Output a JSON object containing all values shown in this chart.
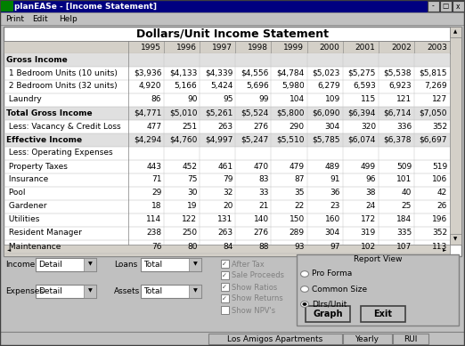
{
  "title": "Dollars/Unit Income Statement",
  "window_title": "planEASe - [Income Statement]",
  "menu_items": [
    "Print",
    "Edit",
    "Help"
  ],
  "years": [
    "1995",
    "1996",
    "1997",
    "1998",
    "1999",
    "2000",
    "2001",
    "2002",
    "2003"
  ],
  "rows": [
    {
      "label": "Gross Income",
      "bold": true,
      "values": []
    },
    {
      "label": " 1 Bedroom Units (10 units)",
      "bold": false,
      "values": [
        "$3,936",
        "$4,133",
        "$4,339",
        "$4,556",
        "$4,784",
        "$5,023",
        "$5,275",
        "$5,538",
        "$5,815"
      ]
    },
    {
      "label": " 2 Bedroom Units (32 units)",
      "bold": false,
      "values": [
        "4,920",
        "5,166",
        "5,424",
        "5,696",
        "5,980",
        "6,279",
        "6,593",
        "6,923",
        "7,269"
      ]
    },
    {
      "label": " Laundry",
      "bold": false,
      "values": [
        "86",
        "90",
        "95",
        "99",
        "104",
        "109",
        "115",
        "121",
        "127"
      ]
    },
    {
      "label": "Total Gross Income",
      "bold": true,
      "values": [
        "$4,771",
        "$5,010",
        "$5,261",
        "$5,524",
        "$5,800",
        "$6,090",
        "$6,394",
        "$6,714",
        "$7,050"
      ]
    },
    {
      "label": " Less: Vacancy & Credit Loss",
      "bold": false,
      "values": [
        "477",
        "251",
        "263",
        "276",
        "290",
        "304",
        "320",
        "336",
        "352"
      ]
    },
    {
      "label": "Effective Income",
      "bold": true,
      "values": [
        "$4,294",
        "$4,760",
        "$4,997",
        "$5,247",
        "$5,510",
        "$5,785",
        "$6,074",
        "$6,378",
        "$6,697"
      ]
    },
    {
      "label": " Less: Operating Expenses",
      "bold": false,
      "values": []
    },
    {
      "label": " Property Taxes",
      "bold": false,
      "values": [
        "443",
        "452",
        "461",
        "470",
        "479",
        "489",
        "499",
        "509",
        "519"
      ]
    },
    {
      "label": " Insurance",
      "bold": false,
      "values": [
        "71",
        "75",
        "79",
        "83",
        "87",
        "91",
        "96",
        "101",
        "106"
      ]
    },
    {
      "label": " Pool",
      "bold": false,
      "values": [
        "29",
        "30",
        "32",
        "33",
        "35",
        "36",
        "38",
        "40",
        "42"
      ]
    },
    {
      "label": " Gardener",
      "bold": false,
      "values": [
        "18",
        "19",
        "20",
        "21",
        "22",
        "23",
        "24",
        "25",
        "26"
      ]
    },
    {
      "label": " Utilities",
      "bold": false,
      "values": [
        "114",
        "122",
        "131",
        "140",
        "150",
        "160",
        "172",
        "184",
        "196"
      ]
    },
    {
      "label": " Resident Manager",
      "bold": false,
      "values": [
        "238",
        "250",
        "263",
        "276",
        "289",
        "304",
        "319",
        "335",
        "352"
      ]
    },
    {
      "label": " Maintenance",
      "bold": false,
      "values": [
        "76",
        "80",
        "84",
        "88",
        "93",
        "97",
        "102",
        "107",
        "113"
      ]
    }
  ],
  "bottom_controls": {
    "income_label": "Income",
    "income_value": "Detail",
    "loans_label": "Loans",
    "loans_value": "Total",
    "expenses_label": "Expenses",
    "expenses_value": "Detail",
    "assets_label": "Assets",
    "assets_value": "Total",
    "checkboxes": [
      {
        "label": "After Tax",
        "checked": true
      },
      {
        "label": "Sale Proceeds",
        "checked": true
      },
      {
        "label": "Show Ratios",
        "checked": true
      },
      {
        "label": "Show Returns",
        "checked": true
      },
      {
        "label": "Show NPV's",
        "checked": false
      }
    ],
    "report_view_title": "Report View",
    "report_options": [
      "Pro Forma",
      "Common Size",
      "Dlrs/Unit"
    ],
    "report_selected": 2,
    "buttons": [
      "Graph",
      "Exit"
    ]
  },
  "status_bar": [
    "Los Amigos Apartments",
    "Yearly",
    "RUI"
  ],
  "bg_color": "#c0c0c0",
  "title_bar_color": "#000080",
  "title_bar_text_color": "#ffffff",
  "font_size": 6.5,
  "title_font_size": 9
}
